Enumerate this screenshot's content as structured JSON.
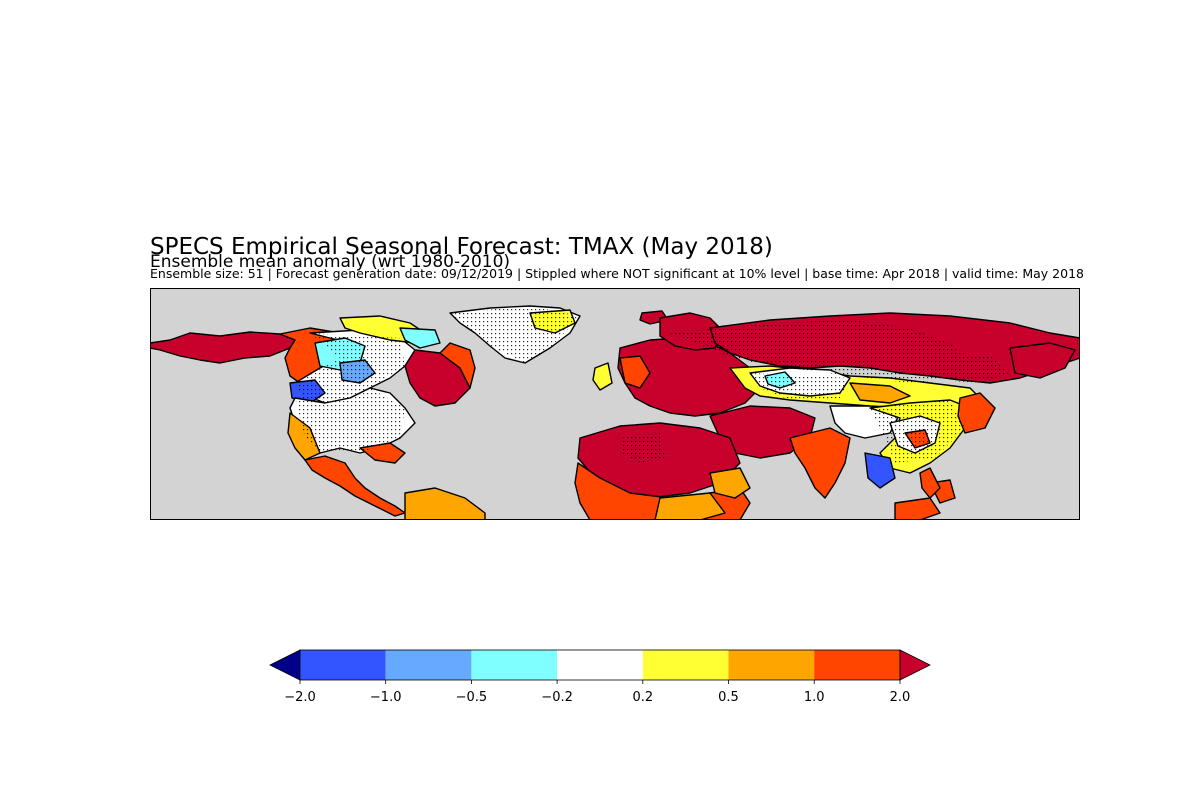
{
  "header": {
    "title": "SPECS Empirical Seasonal Forecast: TMAX (May 2018)",
    "subtitle": "Ensemble mean anomaly (wrt 1980-2010)",
    "info": "Ensemble size: 51 | Forecast generation date: 09/12/2019 |  Stippled where NOT significant at 10% level | base time: Apr 2018 | valid time: May 2018"
  },
  "map": {
    "ocean_color": "#d3d3d3",
    "coastline_color": "#000000"
  },
  "colorbar": {
    "ticks": [
      "−2.0",
      "−1.0",
      "−0.5",
      "−0.2",
      "0.2",
      "0.5",
      "1.0",
      "2.0"
    ],
    "low_extend_color": "#00008b",
    "high_extend_color": "#c8002c",
    "bins": [
      {
        "from": -2.0,
        "to": -1.0,
        "color": "#3355ff"
      },
      {
        "from": -1.0,
        "to": -0.5,
        "color": "#66aaff"
      },
      {
        "from": -0.5,
        "to": -0.2,
        "color": "#7fffff"
      },
      {
        "from": -0.2,
        "to": 0.2,
        "color": "#ffffff"
      },
      {
        "from": 0.2,
        "to": 0.5,
        "color": "#ffff33"
      },
      {
        "from": 0.5,
        "to": 1.0,
        "color": "#ffa500"
      },
      {
        "from": 1.0,
        "to": 2.0,
        "color": "#ff4500"
      }
    ]
  }
}
